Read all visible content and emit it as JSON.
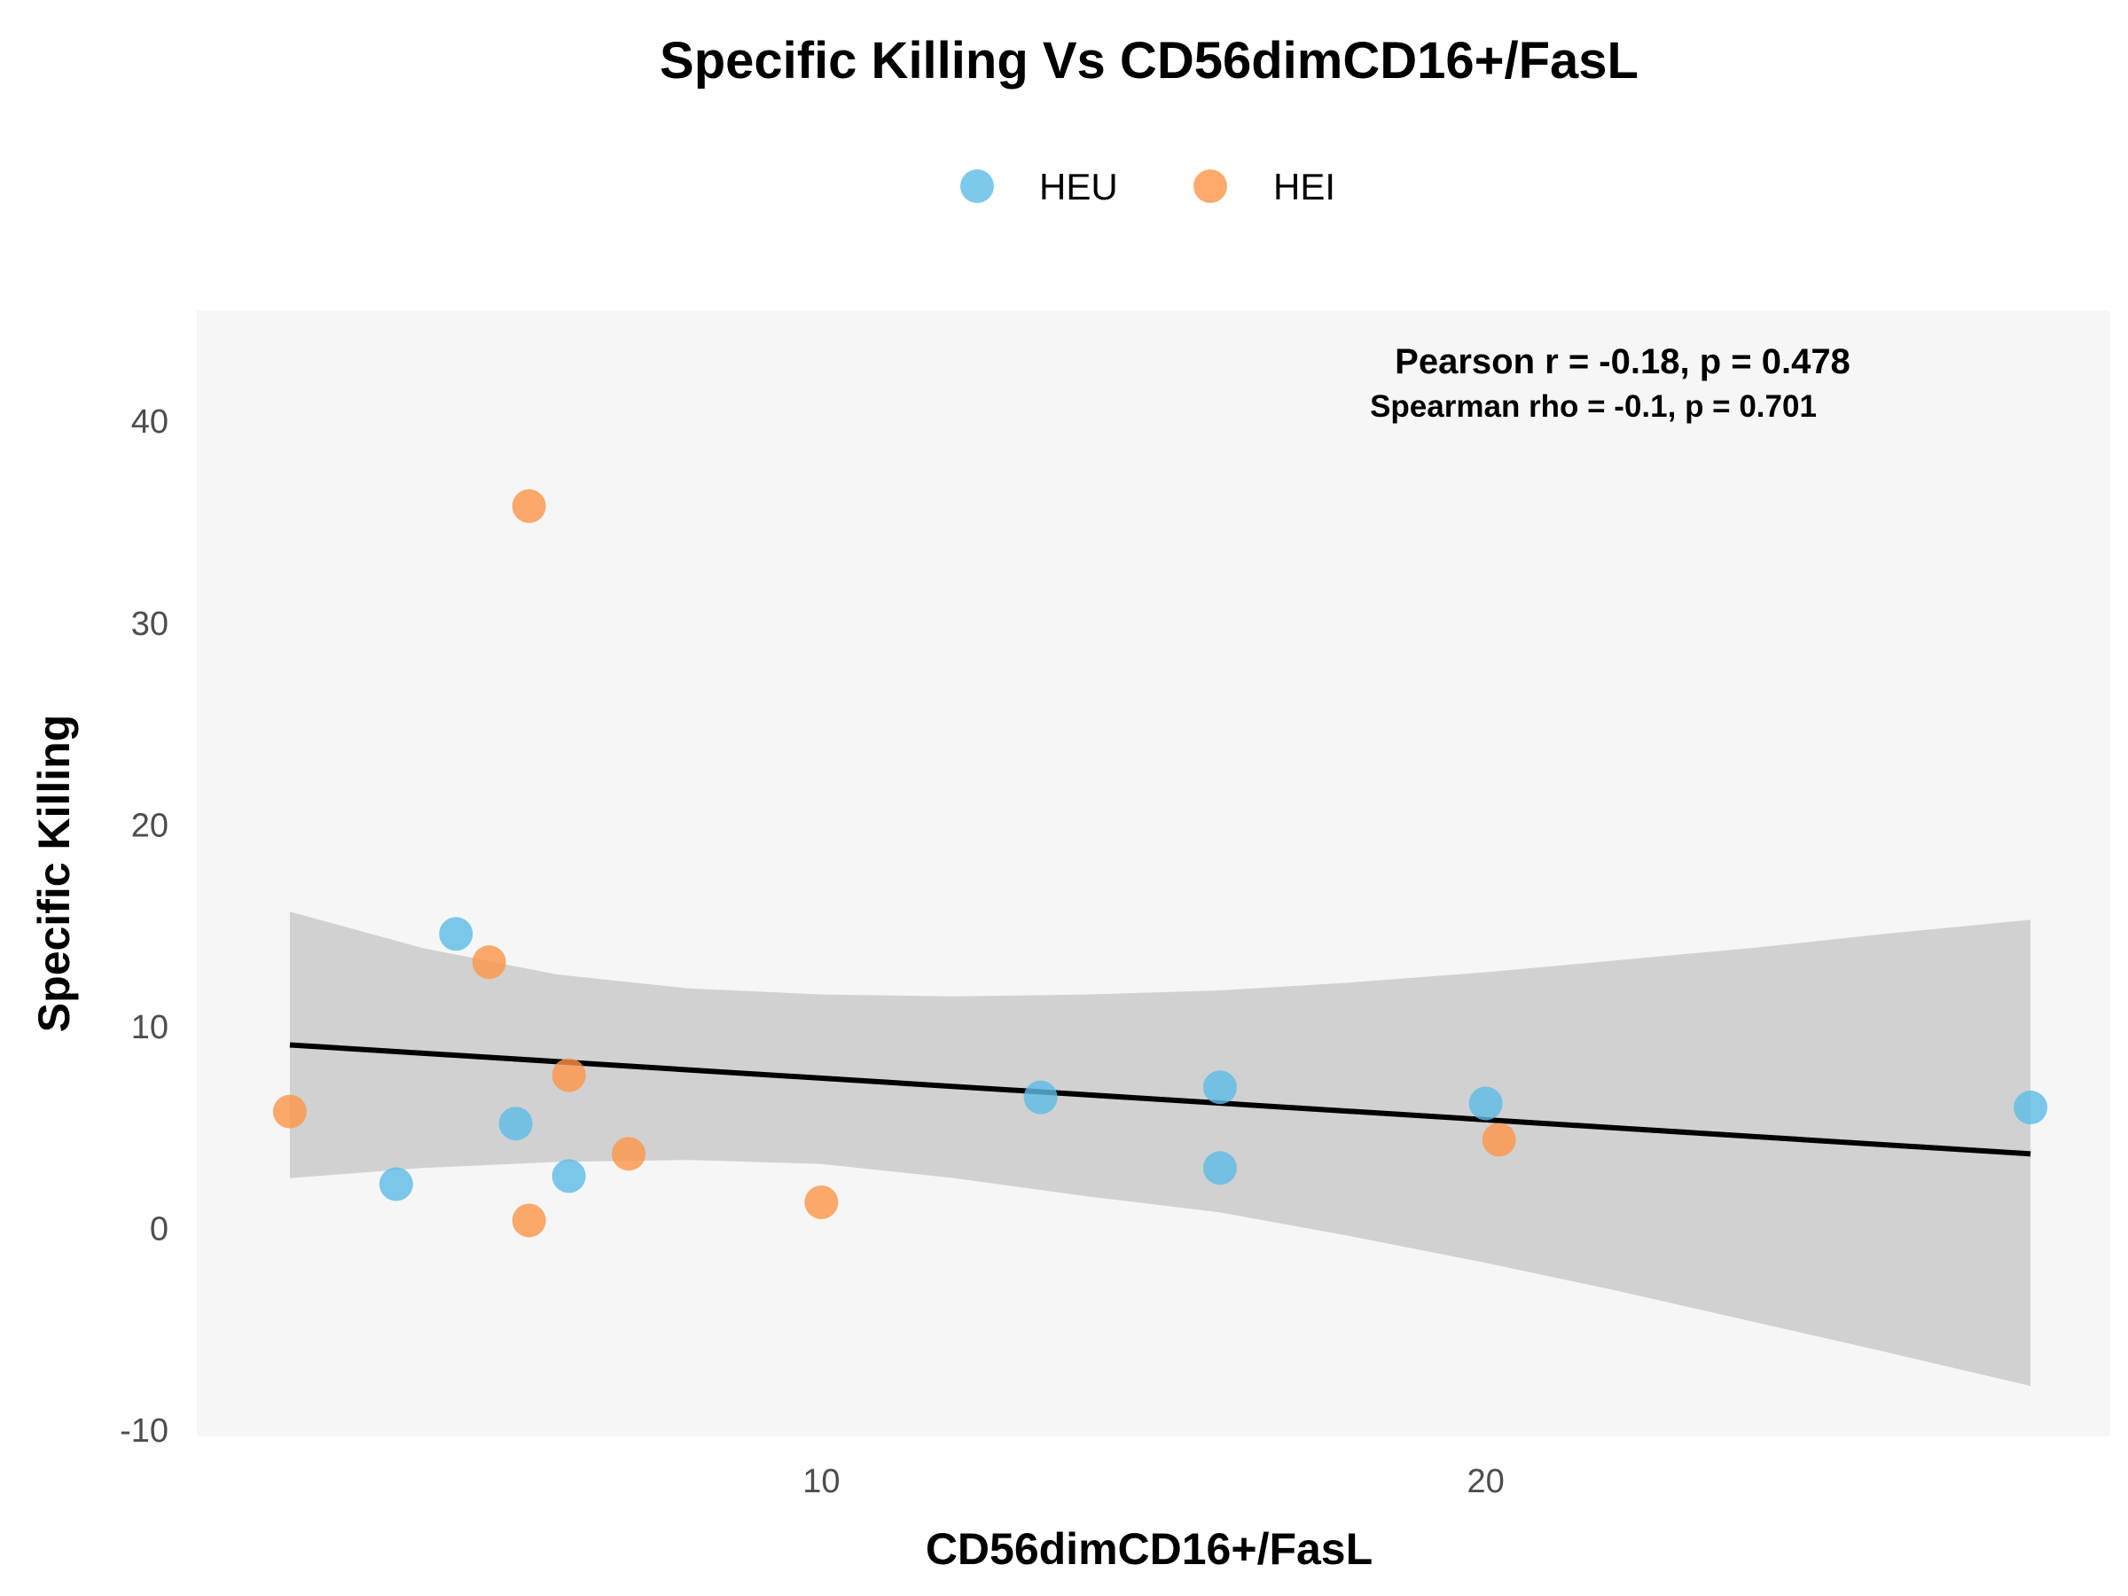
{
  "chart_data": {
    "type": "scatter",
    "title": "Specific Killing Vs CD56dimCD16+/FasL",
    "xlabel": "CD56dimCD16+/FasL",
    "ylabel": "Specific Killing",
    "xlim": [
      0.6,
      29.4
    ],
    "ylim": [
      -10.3,
      45.5
    ],
    "x_ticks": [
      10,
      20
    ],
    "y_ticks": [
      -10,
      0,
      10,
      20,
      30,
      40
    ],
    "grid": false,
    "legend_position": "top-center",
    "colors": {
      "HEU": "#5dbce6",
      "HEI": "#fd9547",
      "band": "#d1d1d1",
      "line": "#000000",
      "panel": "#f6f6f6"
    },
    "series": [
      {
        "name": "HEU",
        "points": [
          [
            3.6,
            2.2
          ],
          [
            4.5,
            14.6
          ],
          [
            5.4,
            5.2
          ],
          [
            6.2,
            2.6
          ],
          [
            13.3,
            6.5
          ],
          [
            16.0,
            7.0
          ],
          [
            16.0,
            3.0
          ],
          [
            20.0,
            6.2
          ],
          [
            28.2,
            6.0
          ]
        ]
      },
      {
        "name": "HEI",
        "points": [
          [
            2.0,
            5.8
          ],
          [
            5.0,
            13.2
          ],
          [
            5.6,
            35.8
          ],
          [
            5.6,
            0.4
          ],
          [
            6.2,
            7.6
          ],
          [
            7.1,
            3.7
          ],
          [
            10.0,
            1.3
          ],
          [
            20.2,
            4.4
          ]
        ]
      }
    ],
    "regression": {
      "x": [
        2.0,
        28.2
      ],
      "y": [
        9.1,
        3.7
      ]
    },
    "confidence_band": {
      "x": [
        2.0,
        4.0,
        6.0,
        8.0,
        10.0,
        12.0,
        14.0,
        16.0,
        18.0,
        20.0,
        22.0,
        24.0,
        26.0,
        28.2
      ],
      "upper": [
        15.7,
        13.9,
        12.6,
        11.9,
        11.6,
        11.5,
        11.6,
        11.8,
        12.2,
        12.7,
        13.3,
        13.9,
        14.6,
        15.3
      ],
      "lower": [
        2.5,
        3.0,
        3.3,
        3.4,
        3.2,
        2.5,
        1.6,
        0.8,
        -0.4,
        -1.7,
        -3.1,
        -4.6,
        -6.1,
        -7.8
      ]
    },
    "annotations": [
      "Pearson r = -0.18, p = 0.478",
      "Spearman rho = -0.1, p = 0.701"
    ]
  }
}
